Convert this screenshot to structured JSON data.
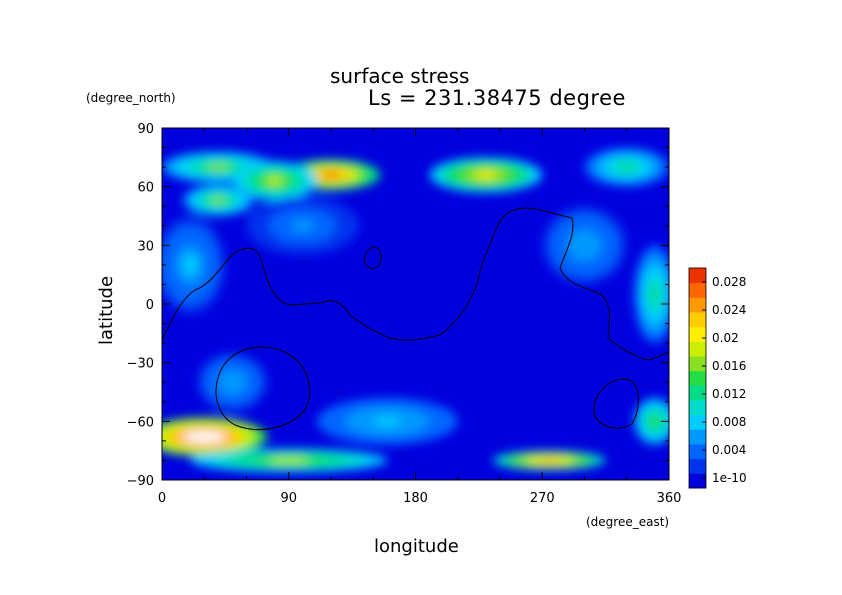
{
  "chart_data": {
    "type": "heatmap",
    "title": "surface stress",
    "subtitle": "Ls = 231.38475 degree",
    "xlabel": "longitude",
    "ylabel": "latitude",
    "x_units": "(degree_east)",
    "y_units": "(degree_north)",
    "xlim": [
      0,
      360
    ],
    "ylim": [
      -90,
      90
    ],
    "xticks": [
      "0",
      "90",
      "180",
      "270",
      "360"
    ],
    "yticks": [
      "90",
      "60",
      "30",
      "0",
      "−30",
      "−60",
      "−90"
    ],
    "colorbar": {
      "min": 0,
      "max": 0.03,
      "labels": [
        "0.028",
        "0.024",
        "0.02",
        "0.016",
        "0.012",
        "0.008",
        "0.004",
        "1e-10"
      ],
      "colors": [
        "#0000dd",
        "#0033ee",
        "#0066ff",
        "#0099ff",
        "#00ccff",
        "#00ddcc",
        "#00dd88",
        "#22dd44",
        "#88e020",
        "#ccee00",
        "#ffee00",
        "#ffcc00",
        "#ff9900",
        "#ff6600",
        "#ee3300"
      ]
    },
    "field": [
      {
        "lon": 40,
        "lat": 70,
        "value": 0.016,
        "rx": 40,
        "ry": 8
      },
      {
        "lon": 120,
        "lat": 66,
        "value": 0.026,
        "rx": 35,
        "ry": 8
      },
      {
        "lon": 80,
        "lat": 63,
        "value": 0.018,
        "rx": 30,
        "ry": 10
      },
      {
        "lon": 40,
        "lat": 53,
        "value": 0.016,
        "rx": 25,
        "ry": 8
      },
      {
        "lon": 230,
        "lat": 66,
        "value": 0.02,
        "rx": 40,
        "ry": 9
      },
      {
        "lon": 330,
        "lat": 70,
        "value": 0.012,
        "rx": 30,
        "ry": 10
      },
      {
        "lon": 350,
        "lat": 5,
        "value": 0.012,
        "rx": 15,
        "ry": 25
      },
      {
        "lon": 30,
        "lat": -68,
        "value": 0.03,
        "rx": 45,
        "ry": 10
      },
      {
        "lon": 90,
        "lat": -80,
        "value": 0.018,
        "rx": 70,
        "ry": 6
      },
      {
        "lon": 275,
        "lat": -80,
        "value": 0.024,
        "rx": 40,
        "ry": 5
      },
      {
        "lon": 350,
        "lat": -60,
        "value": 0.014,
        "rx": 15,
        "ry": 12
      },
      {
        "lon": 160,
        "lat": -60,
        "value": 0.009,
        "rx": 50,
        "ry": 12
      },
      {
        "lon": 20,
        "lat": 20,
        "value": 0.008,
        "rx": 25,
        "ry": 25
      },
      {
        "lon": 100,
        "lat": 40,
        "value": 0.006,
        "rx": 40,
        "ry": 15
      },
      {
        "lon": 300,
        "lat": 30,
        "value": 0.007,
        "rx": 30,
        "ry": 20
      },
      {
        "lon": 50,
        "lat": -40,
        "value": 0.007,
        "rx": 25,
        "ry": 15
      }
    ]
  }
}
